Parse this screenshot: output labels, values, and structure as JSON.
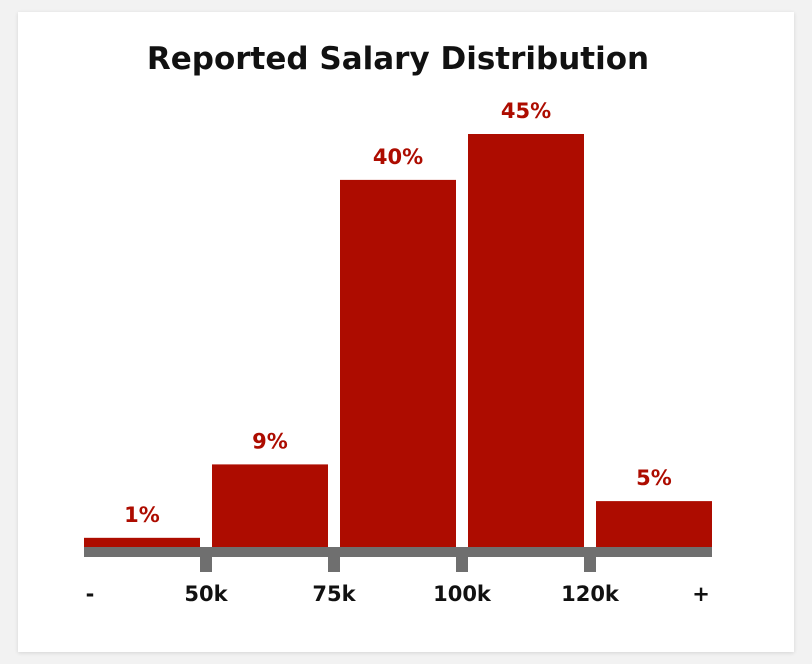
{
  "chart_data": {
    "type": "bar",
    "title": "Reported Salary Distribution",
    "categories": [
      "- to 50k",
      "50k to 75k",
      "75k to 100k",
      "100k to 120k",
      "120k to +"
    ],
    "values": [
      1,
      9,
      40,
      45,
      5
    ],
    "data_labels": [
      "1%",
      "9%",
      "40%",
      "45%",
      "5%"
    ],
    "tick_labels": [
      "-",
      "50k",
      "75k",
      "100k",
      "120k",
      "+"
    ],
    "xlabel": "",
    "ylabel": "",
    "ylim": [
      0,
      45
    ],
    "grid": false,
    "legend": "none",
    "colors": {
      "bar": "#ad0c00",
      "data_label": "#ad0c00",
      "axis": "#6f6f6f",
      "text": "#111111"
    }
  }
}
